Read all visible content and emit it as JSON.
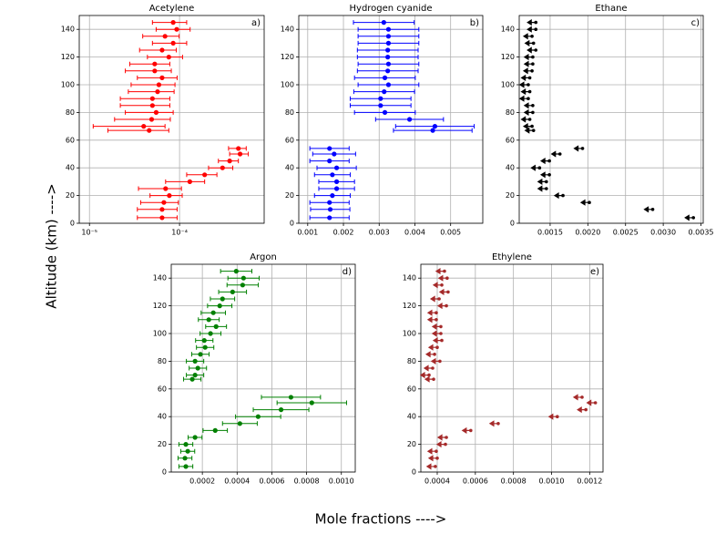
{
  "ylabel": "Altitude (km) ---->",
  "xlabel": "Mole fractions ---->",
  "chart_data": [
    {
      "type": "errorbar",
      "title": "Acetylene",
      "panel_label": "a)",
      "color": "#ff0000",
      "xscale": "log",
      "grid": true,
      "y": [
        145,
        140,
        135,
        130,
        125,
        120,
        115,
        110,
        105,
        100,
        95,
        90,
        85,
        80,
        75,
        70,
        67,
        54,
        50,
        45,
        40,
        35,
        30,
        25,
        20,
        15,
        10,
        4
      ],
      "x": [
        8.5e-05,
        9.3e-05,
        6.9e-05,
        8.5e-05,
        6.4e-05,
        7.6e-05,
        5.3e-05,
        5.3e-05,
        6.4e-05,
        5.9e-05,
        5.7e-05,
        5e-05,
        5e-05,
        5.5e-05,
        4.9e-05,
        4e-05,
        4.6e-05,
        0.00045,
        0.00047,
        0.00036,
        0.0003,
        0.00019,
        0.00013,
        7e-05,
        7.7e-05,
        6.7e-05,
        6.4e-05,
        6.4e-05
      ],
      "xerr": [
        3.5e-05,
        3.8e-05,
        3e-05,
        3.5e-05,
        2.8e-05,
        3.2e-05,
        2.5e-05,
        2.8e-05,
        3e-05,
        3e-05,
        3e-05,
        2.8e-05,
        2.8e-05,
        3e-05,
        3e-05,
        2.9e-05,
        3e-05,
        0.0001,
        0.00011,
        9e-05,
        9e-05,
        7e-05,
        6e-05,
        3.5e-05,
        3e-05,
        3e-05,
        3e-05,
        3e-05
      ],
      "xlim": [
        7.7e-06,
        0.00087
      ],
      "ylim": [
        0,
        150
      ],
      "xticks": [
        {
          "value": 1e-05,
          "label": "10⁻⁵"
        },
        {
          "value": 0.0001,
          "label": "10⁻⁴"
        }
      ],
      "yticks": [
        0,
        20,
        40,
        60,
        80,
        100,
        120,
        140
      ]
    },
    {
      "type": "errorbar",
      "title": "Hydrogen cyanide",
      "panel_label": "b)",
      "color": "#0000ff",
      "grid": true,
      "y": [
        145,
        140,
        135,
        130,
        125,
        120,
        115,
        110,
        105,
        100,
        95,
        90,
        85,
        80,
        75,
        70,
        67,
        54,
        50,
        45,
        40,
        35,
        30,
        25,
        20,
        15,
        10,
        4
      ],
      "x": [
        0.00313,
        0.00326,
        0.00326,
        0.00326,
        0.00324,
        0.00324,
        0.00326,
        0.00324,
        0.00316,
        0.00326,
        0.00314,
        0.00304,
        0.00304,
        0.00316,
        0.00385,
        0.00456,
        0.0045,
        0.00161,
        0.00174,
        0.00161,
        0.00181,
        0.00169,
        0.00181,
        0.00181,
        0.00169,
        0.00161,
        0.00163,
        0.00161
      ],
      "xerr": [
        0.00085,
        0.00085,
        0.00085,
        0.00085,
        0.00085,
        0.00085,
        0.00085,
        0.00085,
        0.00085,
        0.00085,
        0.00085,
        0.00085,
        0.00085,
        0.00085,
        0.00095,
        0.0011,
        0.0011,
        0.00055,
        0.0006,
        0.00055,
        0.00055,
        0.0005,
        0.0005,
        0.0005,
        0.0005,
        0.00055,
        0.00055,
        0.00055
      ],
      "xlim": [
        0.00075,
        0.0059
      ],
      "ylim": [
        0,
        150
      ],
      "xticks": [
        0.001,
        0.002,
        0.003,
        0.004,
        0.005
      ],
      "yticks": [
        0,
        20,
        40,
        60,
        80,
        100,
        120,
        140
      ]
    },
    {
      "type": "upper-limit",
      "title": "Ethane",
      "panel_label": "c)",
      "color": "#000000",
      "grid": true,
      "y": [
        145,
        140,
        135,
        130,
        125,
        120,
        115,
        110,
        105,
        100,
        95,
        90,
        85,
        80,
        75,
        70,
        67,
        54,
        50,
        45,
        40,
        35,
        30,
        25,
        20,
        15,
        10,
        4
      ],
      "x": [
        0.00131,
        0.00131,
        0.00126,
        0.00128,
        0.00131,
        0.00127,
        0.00127,
        0.00126,
        0.00123,
        0.00121,
        0.00123,
        0.00121,
        0.00127,
        0.00127,
        0.00123,
        0.00126,
        0.00128,
        0.00193,
        0.00163,
        0.00149,
        0.00136,
        0.00149,
        0.00145,
        0.00145,
        0.00167,
        0.00202,
        0.00286,
        0.0034
      ],
      "xlim": [
        0.00109,
        0.00353
      ],
      "ylim": [
        0,
        150
      ],
      "xticks": [
        0.0015,
        {
          "value": 0.002,
          "label": "0.0020"
        },
        0.0025,
        {
          "value": 0.003,
          "label": "0.0030"
        },
        0.0035
      ],
      "yticks": [
        0,
        20,
        40,
        60,
        80,
        100,
        120,
        140
      ]
    },
    {
      "type": "errorbar",
      "title": "Argon",
      "panel_label": "d)",
      "color": "#008000",
      "grid": true,
      "y": [
        145,
        140,
        135,
        130,
        125,
        120,
        115,
        110,
        105,
        100,
        95,
        90,
        85,
        80,
        75,
        70,
        67,
        54,
        50,
        45,
        40,
        35,
        30,
        25,
        20,
        15,
        10,
        4
      ],
      "x": [
        0.000395,
        0.000437,
        0.000432,
        0.000374,
        0.000316,
        0.0003,
        0.000263,
        0.000237,
        0.000279,
        0.000247,
        0.000211,
        0.000216,
        0.000189,
        0.000158,
        0.000174,
        0.000158,
        0.000142,
        0.00071,
        0.00083,
        0.000653,
        0.000521,
        0.000416,
        0.000274,
        0.000158,
        0.000105,
        0.000116,
        0.0001,
        0.000105
      ],
      "xerr": [
        9e-05,
        9e-05,
        9e-05,
        8e-05,
        7e-05,
        7e-05,
        7e-05,
        6e-05,
        6e-05,
        6e-05,
        5e-05,
        5e-05,
        5e-05,
        5e-05,
        5e-05,
        5e-05,
        5e-05,
        0.00017,
        0.0002,
        0.00016,
        0.00013,
        0.0001,
        7e-05,
        4e-05,
        4e-05,
        4e-05,
        4e-05,
        4e-05
      ],
      "xlim": [
        2.1e-05,
        0.00108
      ],
      "ylim": [
        0,
        150
      ],
      "xticks": [
        0.0002,
        0.0004,
        0.0006,
        0.0008,
        {
          "value": 0.001,
          "label": "0.0010"
        }
      ],
      "yticks": [
        0,
        20,
        40,
        60,
        80,
        100,
        120,
        140
      ]
    },
    {
      "type": "upper-limit",
      "title": "Ethylene",
      "panel_label": "e)",
      "color": "#a52a2a",
      "grid": true,
      "y": [
        145,
        140,
        135,
        130,
        125,
        120,
        115,
        110,
        105,
        100,
        95,
        90,
        85,
        80,
        75,
        70,
        67,
        54,
        50,
        45,
        40,
        35,
        30,
        25,
        20,
        15,
        10,
        4
      ],
      "x": [
        0.000438,
        0.000452,
        0.000424,
        0.000457,
        0.00041,
        0.000448,
        0.000395,
        0.000395,
        0.000419,
        0.000419,
        0.000424,
        0.0004,
        0.000386,
        0.000414,
        0.000376,
        0.000357,
        0.000381,
        0.00116,
        0.00123,
        0.00118,
        0.00103,
        0.00072,
        0.000576,
        0.000448,
        0.000443,
        0.000395,
        0.0004,
        0.00039
      ],
      "xlim": [
        0.000314,
        0.00127
      ],
      "ylim": [
        0,
        150
      ],
      "xticks": [
        0.0004,
        0.0006,
        0.0008,
        {
          "value": 0.001,
          "label": "0.0010"
        },
        0.0012
      ],
      "yticks": [
        0,
        20,
        40,
        60,
        80,
        100,
        120,
        140
      ]
    }
  ]
}
